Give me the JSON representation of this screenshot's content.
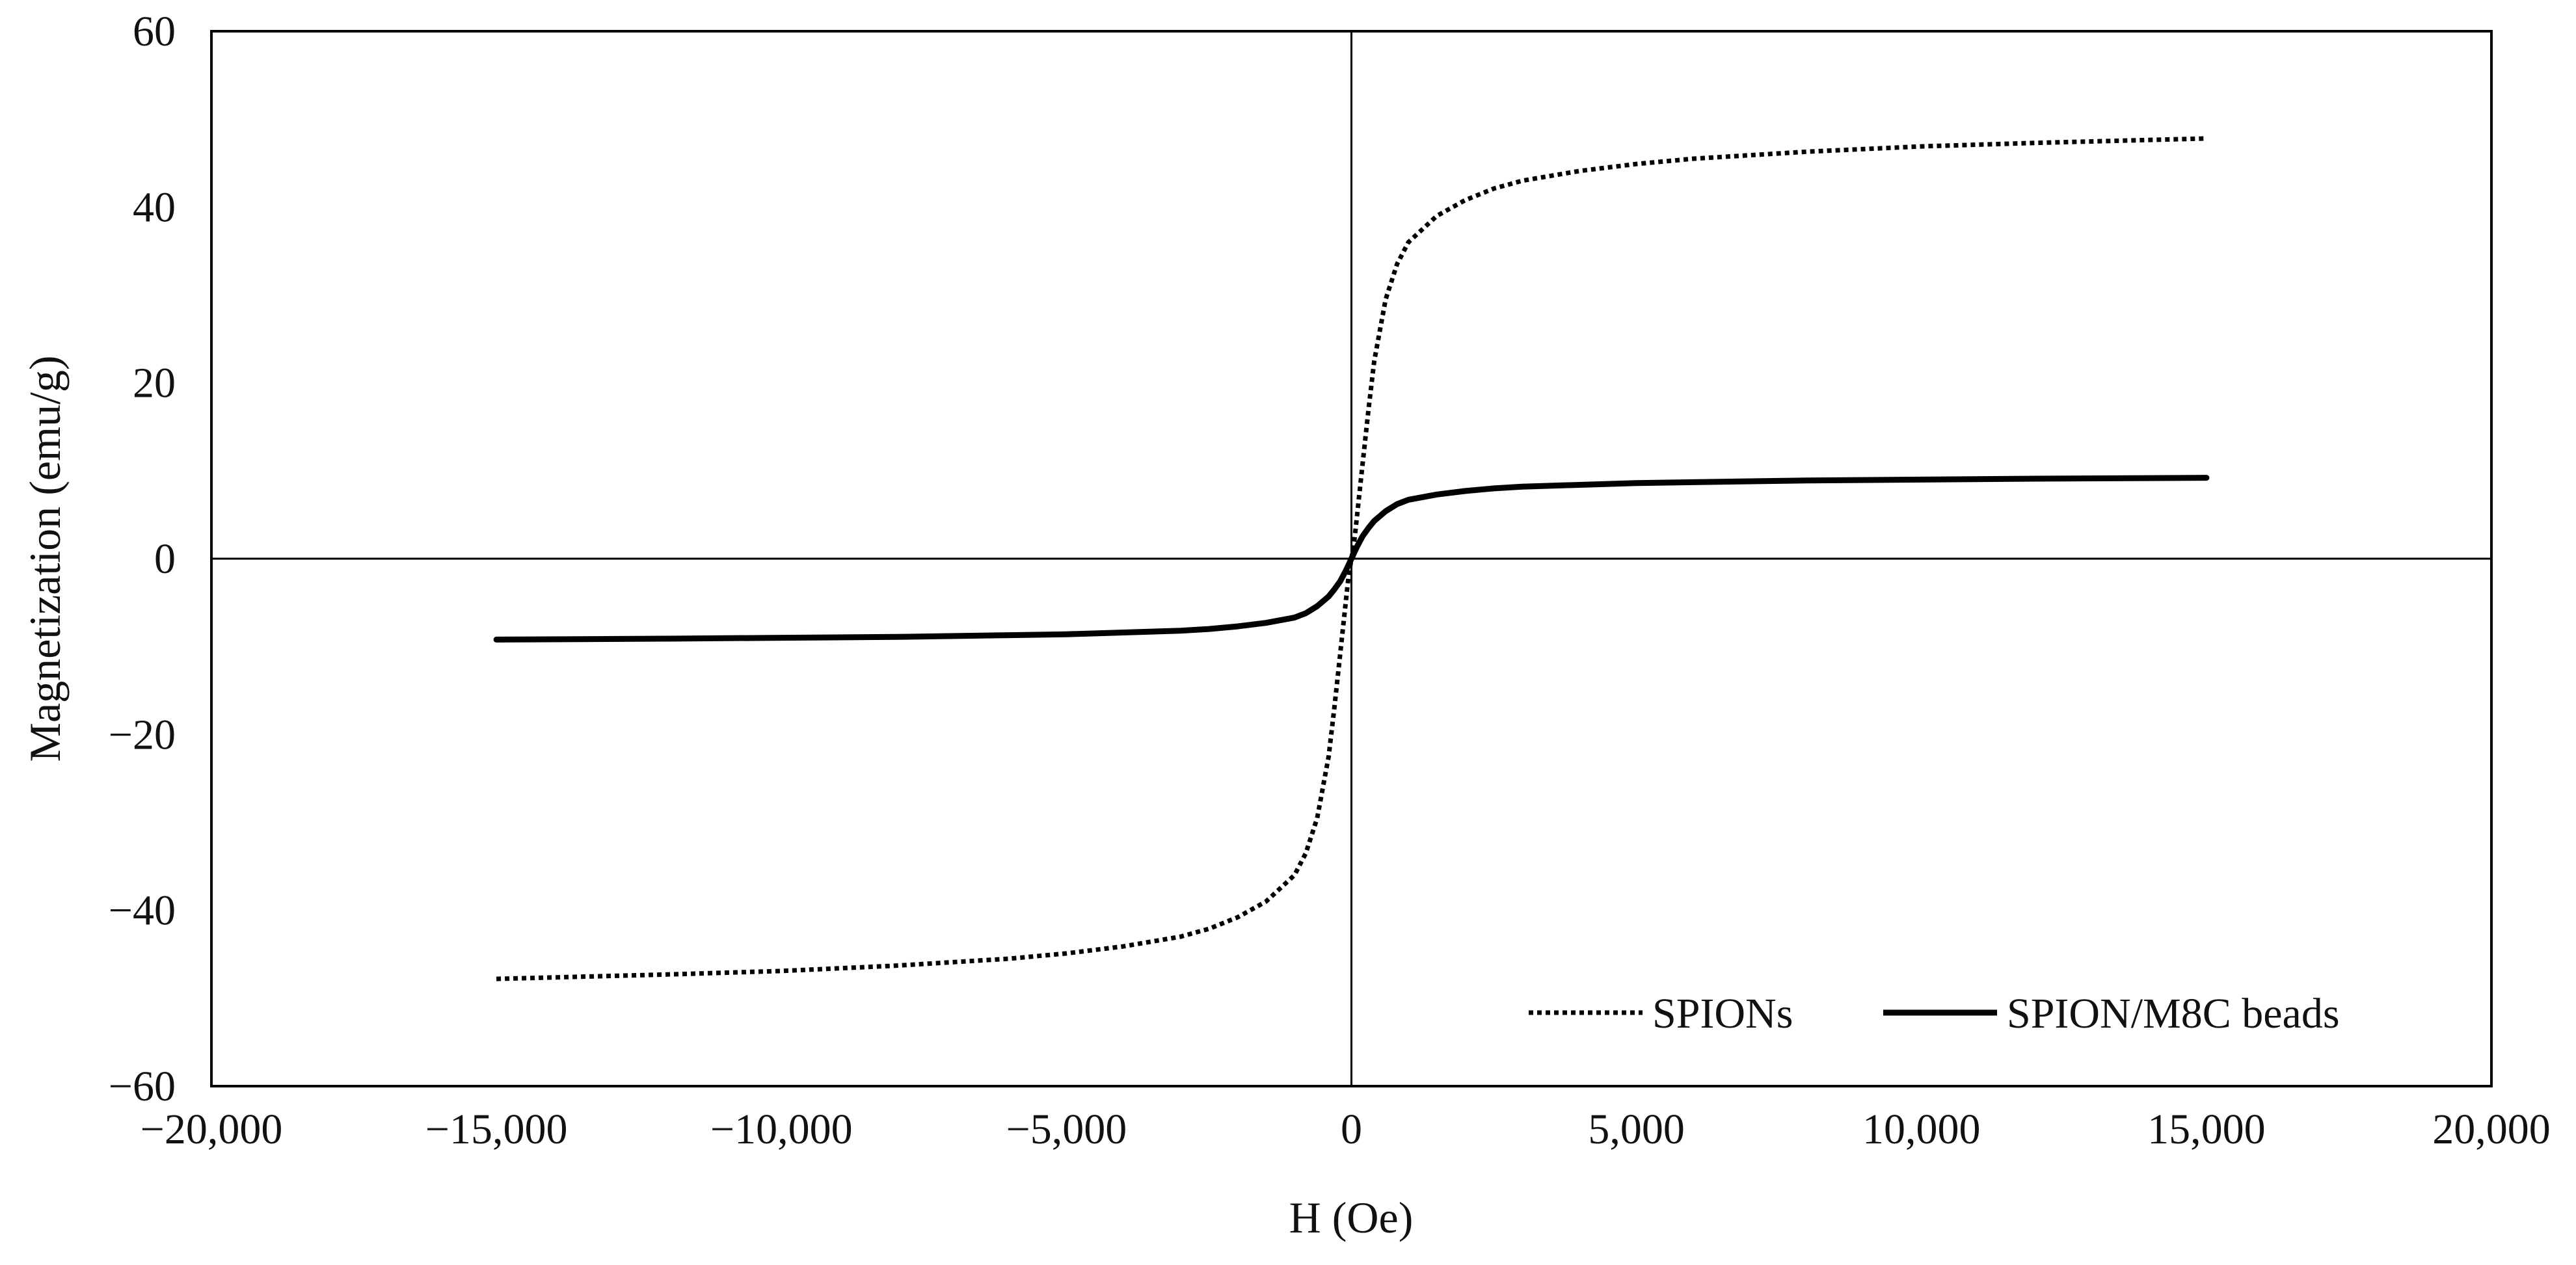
{
  "chart_data": {
    "type": "line",
    "title": "",
    "xlabel": "H (Oe)",
    "ylabel": "Magnetization (emu/g)",
    "xlim": [
      -20000,
      20000
    ],
    "ylim": [
      -60,
      60
    ],
    "xticks": [
      -20000,
      -15000,
      -10000,
      -5000,
      0,
      5000,
      10000,
      15000,
      20000
    ],
    "xtick_labels": [
      "−20,000",
      "−15,000",
      "−10,000",
      "−5,000",
      "0",
      "5,000",
      "10,000",
      "15,000",
      "20,000"
    ],
    "yticks": [
      -60,
      -40,
      -20,
      0,
      20,
      40,
      60
    ],
    "ytick_labels": [
      "−60",
      "−40",
      "−20",
      "0",
      "20",
      "40",
      "60"
    ],
    "grid": false,
    "legend_position": "bottom-right",
    "colors": {
      "series": "#000000",
      "axes": "#000000"
    },
    "series": [
      {
        "name": "SPIONs",
        "style": "dotted",
        "x": [
          -15000,
          -12000,
          -10000,
          -8000,
          -6000,
          -5000,
          -4000,
          -3000,
          -2500,
          -2000,
          -1500,
          -1000,
          -800,
          -600,
          -400,
          -300,
          -200,
          -100,
          -50,
          0,
          50,
          100,
          200,
          300,
          400,
          600,
          800,
          1000,
          1500,
          2000,
          2500,
          3000,
          4000,
          5000,
          6000,
          8000,
          10000,
          12000,
          15000
        ],
        "y": [
          -47.8,
          -47.3,
          -46.9,
          -46.3,
          -45.5,
          -44.9,
          -44.1,
          -43.0,
          -42.1,
          -40.8,
          -39.0,
          -36.0,
          -33.5,
          -29.5,
          -22.5,
          -17.0,
          -11.0,
          -5.0,
          -2.0,
          0.0,
          2.0,
          5.0,
          11.0,
          17.0,
          22.5,
          29.5,
          33.5,
          36.0,
          39.0,
          40.8,
          42.1,
          43.0,
          44.1,
          44.9,
          45.5,
          46.3,
          46.9,
          47.3,
          47.8
        ]
      },
      {
        "name": "SPION/M8C beads",
        "style": "solid",
        "x": [
          -15000,
          -12000,
          -10000,
          -8000,
          -6000,
          -5000,
          -4000,
          -3000,
          -2500,
          -2000,
          -1500,
          -1000,
          -800,
          -600,
          -400,
          -300,
          -200,
          -100,
          -50,
          0,
          50,
          100,
          200,
          300,
          400,
          600,
          800,
          1000,
          1500,
          2000,
          2500,
          3000,
          4000,
          5000,
          6000,
          8000,
          10000,
          12000,
          15000
        ],
        "y": [
          -9.2,
          -9.1,
          -9.0,
          -8.9,
          -8.7,
          -8.6,
          -8.4,
          -8.2,
          -8.0,
          -7.7,
          -7.3,
          -6.7,
          -6.2,
          -5.4,
          -4.3,
          -3.5,
          -2.6,
          -1.4,
          -0.7,
          0.0,
          0.7,
          1.4,
          2.6,
          3.5,
          4.3,
          5.4,
          6.2,
          6.7,
          7.3,
          7.7,
          8.0,
          8.2,
          8.4,
          8.6,
          8.7,
          8.9,
          9.0,
          9.1,
          9.2
        ]
      }
    ]
  }
}
